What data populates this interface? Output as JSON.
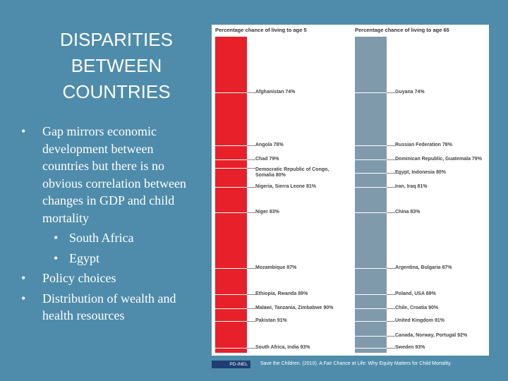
{
  "slide": {
    "title": "DISPARITIES BETWEEN COUNTRIES",
    "bullets": [
      {
        "level": 1,
        "text": "Gap mirrors economic development between countries but there is no obvious correlation between changes in GDP and child mortality"
      },
      {
        "level": 2,
        "text": "South Africa"
      },
      {
        "level": 2,
        "text": "Egypt"
      },
      {
        "level": 1,
        "text": "Policy choices"
      },
      {
        "level": 1,
        "text": "Distribution of wealth and health resources"
      }
    ],
    "figure": {
      "left_header": "Percentage chance of living to age 5",
      "right_header": "Percentage chance of living to age 65",
      "left_labels": [
        "Afghanistan 74%",
        "Angola 78%",
        "Chad 79%",
        "Democratic Republic of Congo, Somalia 80%",
        "Nigeria, Sierra Leone 81%",
        "Niger 83%",
        "Mozambique 87%",
        "Ethiopia, Rwanda 89%",
        "Malawi, Tanzania, Zimbabwe 90%",
        "Pakistan 91%",
        "South Africa, India 93%"
      ],
      "right_labels": [
        "Guyana 74%",
        "Russian Federation 78%",
        "Dominican Republic, Guatemala 79%",
        "Egypt, Indonesia 80%",
        "Iran, Iraq 81%",
        "China 83%",
        "Argentina, Bulgaria 87%",
        "Poland, USA 89%",
        "Chile, Croatia 90%",
        "United Kingdom 91%",
        "Canada, Norway, Portugal 92%",
        "Sweden 93%"
      ],
      "license": "PD-INEL",
      "citation": "Save the Children. (2010). A Fair Chance at Life: Why Equity Matters for Child Mortality."
    }
  }
}
